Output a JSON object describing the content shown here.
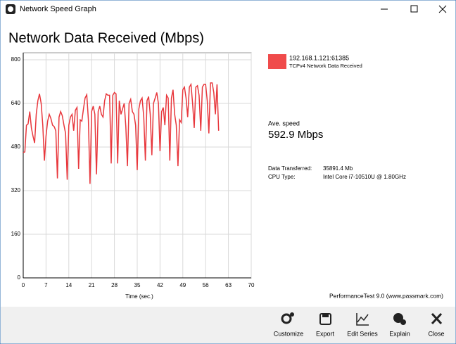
{
  "window": {
    "title": "Network Speed Graph"
  },
  "chart_data": {
    "type": "line",
    "title": "Network Data Received (Mbps)",
    "x_label": "Time (sec.)",
    "x": [
      0,
      0.5,
      1,
      1.5,
      2,
      2.5,
      3,
      3.5,
      4,
      4.5,
      5,
      5.5,
      6,
      6.5,
      7,
      7.5,
      8,
      8.5,
      9,
      9.5,
      10,
      10.5,
      11,
      11.5,
      12,
      12.5,
      13,
      13.5,
      14,
      14.5,
      15,
      15.5,
      16,
      16.5,
      17,
      17.5,
      18,
      18.5,
      19,
      19.5,
      20,
      20.5,
      21,
      21.5,
      22,
      22.5,
      23,
      23.5,
      24,
      24.5,
      25,
      25.5,
      26,
      26.5,
      27,
      27.5,
      28,
      28.5,
      29,
      29.5,
      30,
      30.5,
      31,
      31.5,
      32,
      32.5,
      33,
      33.5,
      34,
      34.5,
      35,
      35.5,
      36,
      36.5,
      37,
      37.5,
      38,
      38.5,
      39,
      39.5,
      40,
      40.5,
      41,
      41.5,
      42,
      42.5,
      43,
      43.5,
      44,
      44.5,
      45,
      45.5,
      46,
      46.5,
      47,
      47.5,
      48,
      48.5,
      49,
      49.5,
      50,
      50.5,
      51,
      51.5,
      52,
      52.5,
      53,
      53.5,
      54,
      54.5,
      55,
      55.5,
      56,
      56.5,
      57,
      57.5,
      58,
      58.5,
      59,
      59.5,
      60
    ],
    "series": [
      {
        "name": "192.168.1.121:61385",
        "description": "TCPv4 Network Data Received",
        "color": "#e8383d",
        "legend_color": "#f04b4b",
        "values": [
          460,
          462,
          560,
          565,
          610,
          550,
          520,
          495,
          600,
          650,
          675,
          640,
          560,
          430,
          520,
          575,
          600,
          585,
          560,
          555,
          540,
          365,
          590,
          610,
          595,
          560,
          530,
          360,
          560,
          590,
          600,
          540,
          615,
          625,
          400,
          580,
          575,
          620,
          660,
          672,
          580,
          345,
          610,
          630,
          600,
          380,
          610,
          630,
          600,
          590,
          650,
          675,
          670,
          670,
          420,
          670,
          680,
          675,
          420,
          650,
          600,
          620,
          640,
          555,
          410,
          640,
          655,
          610,
          600,
          560,
          395,
          620,
          650,
          660,
          590,
          430,
          650,
          665,
          600,
          450,
          640,
          660,
          680,
          640,
          465,
          610,
          625,
          560,
          670,
          660,
          430,
          660,
          690,
          600,
          560,
          410,
          580,
          570,
          690,
          700,
          660,
          590,
          700,
          710,
          640,
          550,
          700,
          705,
          670,
          540,
          700,
          710,
          710,
          650,
          530,
          715,
          715,
          680,
          600,
          710,
          540
        ]
      }
    ],
    "xlim": [
      0,
      70
    ],
    "xticks": [
      0,
      7,
      14,
      21,
      28,
      35,
      42,
      49,
      56,
      63,
      70
    ],
    "ylim": [
      0,
      800
    ],
    "yticks": [
      0,
      160,
      320,
      480,
      640,
      800
    ],
    "grid": true
  },
  "stats": {
    "ave_label": "Ave. speed",
    "ave_value": "592.9 Mbps",
    "rows": [
      [
        "Data Transferred:",
        "35891.4 Mb"
      ],
      [
        "CPU Type:",
        "Intel Core i7-10510U @ 1.80GHz"
      ]
    ]
  },
  "footer": "PerformanceTest 9.0 (www.passmark.com)",
  "toolbar": [
    "Customize",
    "Export",
    "Edit Series",
    "Explain",
    "Close"
  ]
}
